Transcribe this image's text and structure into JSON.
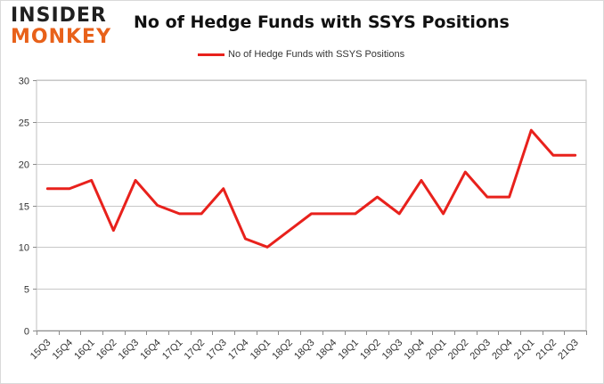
{
  "logo": {
    "line1": "INSIDER",
    "line2": "MONKEY"
  },
  "chart_data": {
    "type": "line",
    "title": "No of Hedge Funds with SSYS Positions",
    "xlabel": "",
    "ylabel": "",
    "ylim": [
      0,
      30
    ],
    "yticks": [
      0,
      5,
      10,
      15,
      20,
      25,
      30
    ],
    "grid": true,
    "legend_position": "top-center",
    "categories": [
      "15Q3",
      "15Q4",
      "16Q1",
      "16Q2",
      "16Q3",
      "16Q4",
      "17Q1",
      "17Q2",
      "17Q3",
      "17Q4",
      "18Q1",
      "18Q2",
      "18Q3",
      "18Q4",
      "19Q1",
      "19Q2",
      "19Q3",
      "19Q4",
      "20Q1",
      "20Q2",
      "20Q3",
      "20Q4",
      "21Q1",
      "21Q2",
      "21Q3"
    ],
    "series": [
      {
        "name": "No of Hedge Funds with SSYS Positions",
        "color": "#e8211c",
        "values": [
          17,
          17,
          18,
          12,
          18,
          15,
          14,
          14,
          17,
          11,
          10,
          12,
          14,
          14,
          14,
          16,
          14,
          18,
          14,
          19,
          16,
          16,
          24,
          21,
          21
        ]
      }
    ]
  }
}
